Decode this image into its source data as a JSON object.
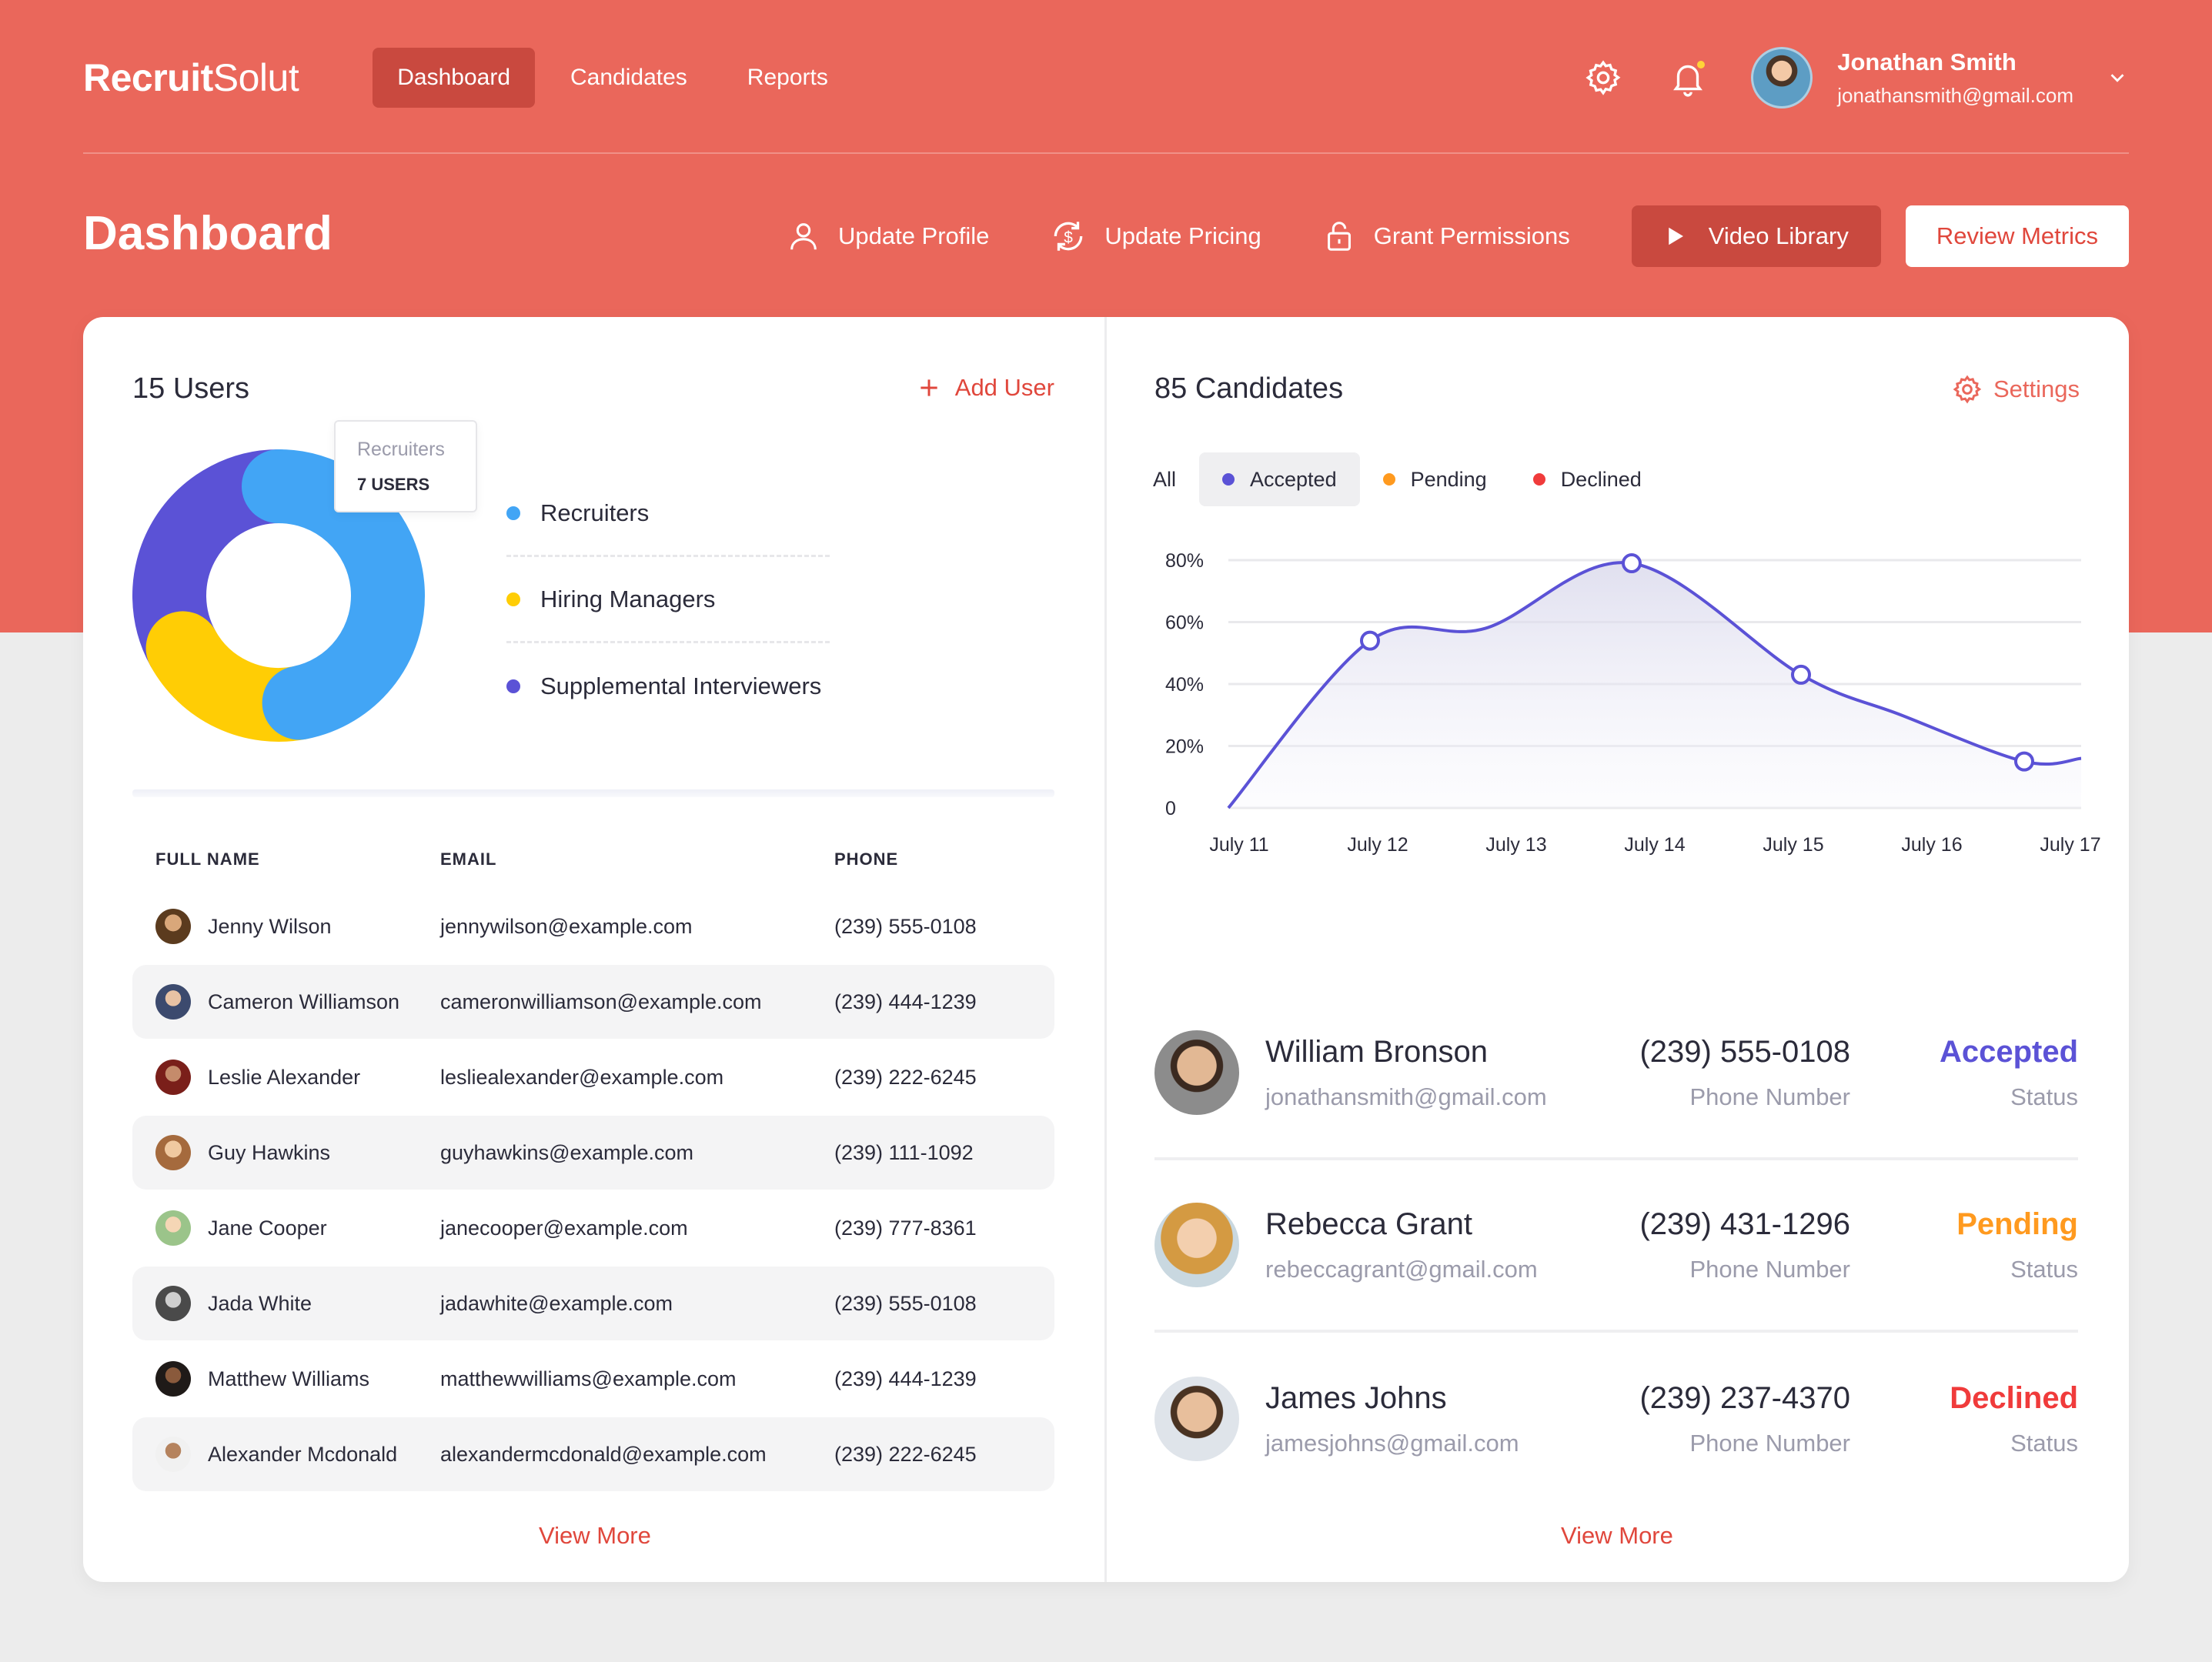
{
  "app": {
    "logo_bold": "Recruit",
    "logo_light": "Solut"
  },
  "nav": {
    "items": [
      {
        "label": "Dashboard",
        "active": true
      },
      {
        "label": "Candidates",
        "active": false
      },
      {
        "label": "Reports",
        "active": false
      }
    ],
    "icons": [
      "gear-icon",
      "bell-icon"
    ],
    "notification_dot_color": "#ffd338",
    "user": {
      "name": "Jonathan Smith",
      "email": "jonathansmith@gmail.com"
    }
  },
  "header": {
    "title": "Dashboard",
    "actions": [
      {
        "label": "Update Profile",
        "icon": "user-icon"
      },
      {
        "label": "Update Pricing",
        "icon": "dollar-cycle-icon"
      },
      {
        "label": "Grant Permissions",
        "icon": "lock-icon"
      }
    ],
    "video_button": "Video Library",
    "review_button": "Review Metrics"
  },
  "users_panel": {
    "title": "15 Users",
    "add_label": "Add User",
    "tooltip": {
      "label": "Recruiters",
      "value": "7 USERS"
    },
    "legend": [
      {
        "label": "Recruiters",
        "color": "#42a5f5"
      },
      {
        "label": "Hiring Managers",
        "color": "#ffcd05"
      },
      {
        "label": "Supplemental Interviewers",
        "color": "#5b52d6"
      }
    ],
    "donut_slices": [
      {
        "name": "Recruiters",
        "fraction": 0.47,
        "color": "#42a5f5"
      },
      {
        "name": "Hiring Managers",
        "fraction": 0.2,
        "color": "#ffcd05"
      },
      {
        "name": "Supplemental Interviewers",
        "fraction": 0.33,
        "color": "#5b52d6"
      }
    ],
    "columns": [
      "FULL NAME",
      "EMAIL",
      "PHONE"
    ],
    "rows": [
      {
        "name": "Jenny Wilson",
        "email": "jennywilson@example.com",
        "phone": "(239) 555-0108"
      },
      {
        "name": "Cameron Williamson",
        "email": "cameronwilliamson@example.com",
        "phone": "(239) 444-1239"
      },
      {
        "name": "Leslie Alexander",
        "email": "lesliealexander@example.com",
        "phone": "(239) 222-6245"
      },
      {
        "name": "Guy Hawkins",
        "email": "guyhawkins@example.com",
        "phone": "(239) 111-1092"
      },
      {
        "name": "Jane Cooper",
        "email": "janecooper@example.com",
        "phone": "(239) 777-8361"
      },
      {
        "name": "Jada White",
        "email": "jadawhite@example.com",
        "phone": "(239) 555-0108"
      },
      {
        "name": "Matthew Williams",
        "email": "matthewwilliams@example.com",
        "phone": "(239) 444-1239"
      },
      {
        "name": "Alexander Mcdonald",
        "email": "alexandermcdonald@example.com",
        "phone": "(239) 222-6245"
      }
    ],
    "view_more": "View More"
  },
  "candidates_panel": {
    "title": "85 Candidates",
    "settings_label": "Settings",
    "filters": [
      {
        "label": "All",
        "color": "",
        "active": false
      },
      {
        "label": "Accepted",
        "color": "#5b52d6",
        "active": true
      },
      {
        "label": "Pending",
        "color": "#ff9a1f",
        "active": false
      },
      {
        "label": "Declined",
        "color": "#f03b3b",
        "active": false
      }
    ],
    "list": [
      {
        "name": "William Bronson",
        "email": "jonathansmith@gmail.com",
        "phone": "(239) 555-0108",
        "phone_label": "Phone Number",
        "status": "Accepted",
        "status_label": "Status",
        "status_color": "#5b52d6"
      },
      {
        "name": "Rebecca Grant",
        "email": "rebeccagrant@gmail.com",
        "phone": "(239) 431-1296",
        "phone_label": "Phone Number",
        "status": "Pending",
        "status_label": "Status",
        "status_color": "#ff9a1f"
      },
      {
        "name": "James Johns",
        "email": "jamesjohns@gmail.com",
        "phone": "(239) 237-4370",
        "phone_label": "Phone Number",
        "status": "Declined",
        "status_label": "Status",
        "status_color": "#f03b3b"
      }
    ],
    "view_more": "View More"
  },
  "chart_data": {
    "type": "area",
    "categories": [
      "July 11",
      "July 12",
      "July 13",
      "July 14",
      "July 15",
      "July 16",
      "July 17"
    ],
    "y_ticks": [
      "0",
      "20%",
      "40%",
      "60%",
      "80%"
    ],
    "ylim": [
      0,
      80
    ],
    "series": [
      {
        "values": [
          0,
          54,
          58,
          79,
          43,
          30,
          15
        ],
        "color": "#5b52d6"
      }
    ],
    "curve_end_value": 16,
    "grid": true
  }
}
